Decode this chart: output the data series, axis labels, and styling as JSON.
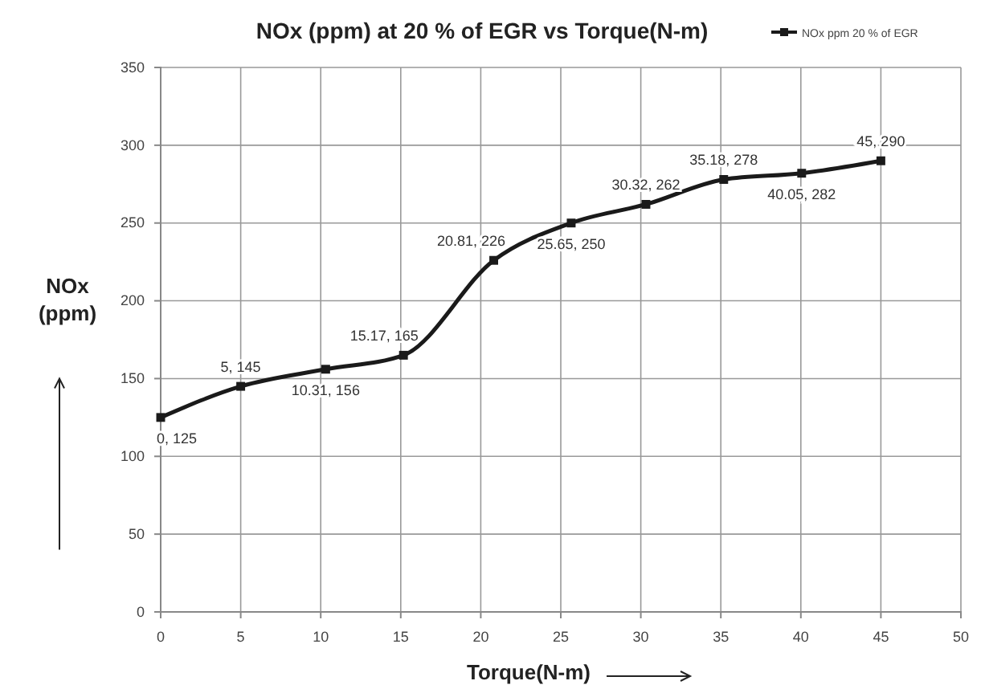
{
  "chart_data": {
    "type": "line",
    "title": "NOx (ppm) at 20 % of EGR vs Torque(N-m)",
    "xlabel": "Torque(N-m)",
    "ylabel": "NOx (ppm)",
    "x": [
      0,
      5,
      10.31,
      15.17,
      20.81,
      25.65,
      30.32,
      35.18,
      40.05,
      45
    ],
    "series": [
      {
        "name": "NOx ppm 20 % of EGR",
        "color": "#1a1a1a",
        "values": [
          125,
          145,
          156,
          165,
          226,
          250,
          262,
          278,
          282,
          290
        ],
        "value_labels": [
          "0, 125",
          "5, 145",
          "10.31, 156",
          "15.17, 165",
          "20.81, 226",
          "25.65, 250",
          "30.32, 262",
          "35.18, 278",
          "40.05, 282",
          "45, 290"
        ]
      }
    ],
    "xlim": [
      0,
      50
    ],
    "xticks": [
      0,
      5,
      10,
      15,
      20,
      25,
      30,
      35,
      40,
      45,
      50
    ],
    "ylim": [
      0,
      350
    ],
    "yticks": [
      0,
      50,
      100,
      150,
      200,
      250,
      300,
      350
    ],
    "grid": true,
    "legend": "top right",
    "marker": "square",
    "line_style": "solid"
  }
}
